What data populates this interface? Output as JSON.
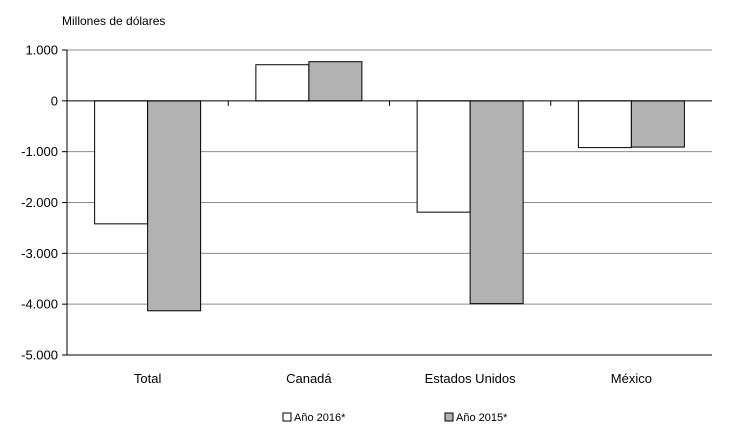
{
  "chart_data": {
    "type": "bar",
    "unit_label": "Millones de dólares",
    "categories": [
      "Total",
      "Canadá",
      "Estados Unidos",
      "México"
    ],
    "series": [
      {
        "name": "Año 2016*",
        "values": [
          -2420,
          710,
          -2190,
          -920
        ],
        "color": "#ffffff"
      },
      {
        "name": "Año 2015*",
        "values": [
          -4130,
          770,
          -3990,
          -910
        ],
        "color": "#b2b2b2"
      }
    ],
    "ylim": [
      -5000,
      1000
    ],
    "yticks": [
      1000,
      0,
      -1000,
      -2000,
      -3000,
      -4000,
      -5000
    ],
    "ytick_labels": [
      "1.000",
      "0",
      "-1.000",
      "-2.000",
      "-3.000",
      "-4.000",
      "-5.000"
    ],
    "grid": true,
    "legend_position": "bottom-center"
  }
}
